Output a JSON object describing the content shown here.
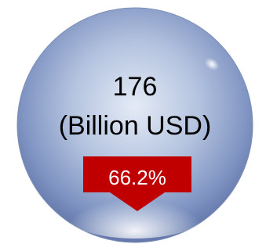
{
  "value": "176",
  "unit": "(Billion USD)",
  "change": "66.2%"
}
